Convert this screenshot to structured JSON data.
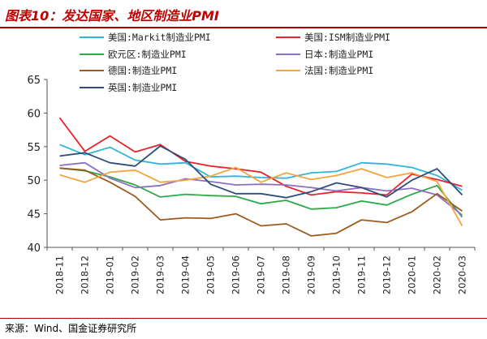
{
  "header": {
    "title": "图表10：发达国家、地区制造业PMI"
  },
  "footer": {
    "source": "来源：Wind、国金证券研究所"
  },
  "chart_data": {
    "type": "line",
    "categories": [
      "2018-11",
      "2018-12",
      "2019-01",
      "2019-02",
      "2019-03",
      "2019-04",
      "2019-05",
      "2019-06",
      "2019-07",
      "2019-08",
      "2019-09",
      "2019-10",
      "2019-11",
      "2019-12",
      "2020-01",
      "2020-02",
      "2020-03"
    ],
    "ylim": [
      40,
      65
    ],
    "yticks": [
      40,
      45,
      50,
      55,
      60,
      65
    ],
    "grid": false,
    "legend_placement": "top",
    "series": [
      {
        "name": "美国:Markit制造业PMI",
        "color": "#2fb7d8",
        "values": [
          55.3,
          53.8,
          54.9,
          53.0,
          52.4,
          52.6,
          50.5,
          50.6,
          50.4,
          50.3,
          51.1,
          51.3,
          52.6,
          52.4,
          51.9,
          50.7,
          48.5
        ]
      },
      {
        "name": "美国:ISM制造业PMI",
        "color": "#e8232c",
        "values": [
          59.3,
          54.3,
          56.6,
          54.2,
          55.3,
          52.8,
          52.1,
          51.7,
          51.2,
          49.1,
          47.8,
          48.3,
          48.1,
          47.8,
          50.9,
          50.1,
          49.1
        ]
      },
      {
        "name": "欧元区:制造业PMI",
        "color": "#2aaa48",
        "values": [
          51.8,
          51.4,
          50.5,
          49.3,
          47.5,
          47.9,
          47.7,
          47.6,
          46.5,
          47.0,
          45.7,
          45.9,
          46.9,
          46.3,
          47.9,
          49.2,
          44.5
        ]
      },
      {
        "name": "日本:制造业PMI",
        "color": "#8f6fbf",
        "values": [
          52.2,
          52.6,
          50.3,
          48.9,
          49.2,
          50.2,
          49.8,
          49.3,
          49.4,
          49.3,
          48.9,
          48.4,
          48.9,
          48.4,
          48.8,
          47.8,
          44.8
        ]
      },
      {
        "name": "德国:制造业PMI",
        "color": "#9c5a1c",
        "values": [
          51.8,
          51.5,
          49.7,
          47.6,
          44.1,
          44.4,
          44.3,
          45.0,
          43.2,
          43.5,
          41.7,
          42.1,
          44.1,
          43.7,
          45.3,
          48.0,
          45.4
        ]
      },
      {
        "name": "法国:制造业PMI",
        "color": "#f3a543",
        "values": [
          50.8,
          49.7,
          51.2,
          51.5,
          49.7,
          50.0,
          50.6,
          51.9,
          49.7,
          51.1,
          50.1,
          50.7,
          51.7,
          50.4,
          51.1,
          49.8,
          43.2
        ]
      },
      {
        "name": "英国:制造业PMI",
        "color": "#2e4d7b",
        "values": [
          53.6,
          54.1,
          52.6,
          52.1,
          55.1,
          53.1,
          49.4,
          48.0,
          48.0,
          47.4,
          48.3,
          49.6,
          48.9,
          47.5,
          50.0,
          51.7,
          47.8
        ]
      }
    ]
  }
}
